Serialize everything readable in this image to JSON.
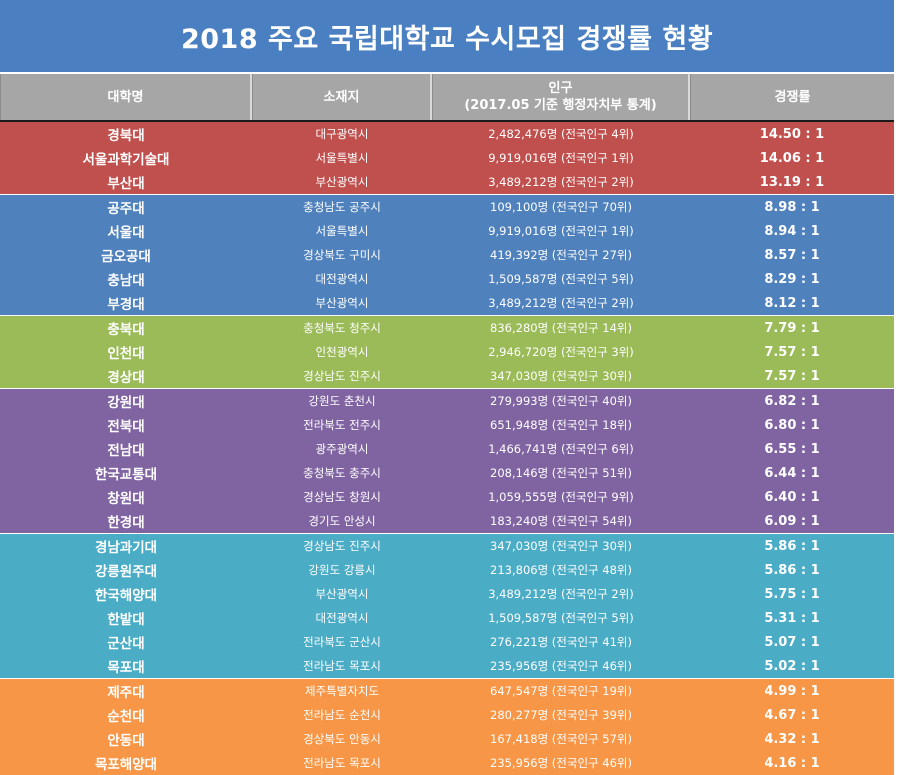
{
  "title": "2018 주요 국립대학교 수시모집 경쟁률 현황",
  "headers": {
    "university": "대학명",
    "location": "소재지",
    "population_line1": "인구",
    "population_line2": "(2017.05 기준 행정자치부 통계)",
    "ratio": "경쟁률"
  },
  "group_colors": {
    "red": "#c0504d",
    "blue": "#4f81bd",
    "green": "#9bbb59",
    "purple": "#8064a2",
    "teal": "#4bacc6",
    "orange": "#f79646"
  },
  "rows": [
    {
      "group": "red",
      "name": "경북대",
      "location": "대구광역시",
      "population": "2,482,476명 (전국인구 4위)",
      "ratio": "14.50 : 1"
    },
    {
      "group": "red",
      "name": "서울과학기술대",
      "location": "서울특별시",
      "population": "9,919,016명 (전국인구 1위)",
      "ratio": "14.06 : 1"
    },
    {
      "group": "red",
      "name": "부산대",
      "location": "부산광역시",
      "population": "3,489,212명 (전국인구 2위)",
      "ratio": "13.19 : 1"
    },
    {
      "group": "blue",
      "name": "공주대",
      "location": "충청남도 공주시",
      "population": "109,100명 (전국인구 70위)",
      "ratio": "8.98 : 1"
    },
    {
      "group": "blue",
      "name": "서울대",
      "location": "서울특별시",
      "population": "9,919,016명 (전국인구 1위)",
      "ratio": "8.94 : 1"
    },
    {
      "group": "blue",
      "name": "금오공대",
      "location": "경상북도 구미시",
      "population": "419,392명 (전국인구 27위)",
      "ratio": "8.57 : 1"
    },
    {
      "group": "blue",
      "name": "충남대",
      "location": "대전광역시",
      "population": "1,509,587명 (전국인구 5위)",
      "ratio": "8.29 : 1"
    },
    {
      "group": "blue",
      "name": "부경대",
      "location": "부산광역시",
      "population": "3,489,212명 (전국인구 2위)",
      "ratio": "8.12 : 1"
    },
    {
      "group": "green",
      "name": "충북대",
      "location": "충청북도 청주시",
      "population": "836,280명 (전국인구 14위)",
      "ratio": "7.79 : 1"
    },
    {
      "group": "green",
      "name": "인천대",
      "location": "인천광역시",
      "population": "2,946,720명 (전국인구 3위)",
      "ratio": "7.57 : 1"
    },
    {
      "group": "green",
      "name": "경상대",
      "location": "경상남도 진주시",
      "population": "347,030명 (전국인구 30위)",
      "ratio": "7.57 : 1"
    },
    {
      "group": "purple",
      "name": "강원대",
      "location": "강원도 춘천시",
      "population": "279,993명 (전국인구 40위)",
      "ratio": "6.82 : 1"
    },
    {
      "group": "purple",
      "name": "전북대",
      "location": "전라북도 전주시",
      "population": "651,948명 (전국인구 18위)",
      "ratio": "6.80 : 1"
    },
    {
      "group": "purple",
      "name": "전남대",
      "location": "광주광역시",
      "population": "1,466,741명 (전국인구 6위)",
      "ratio": "6.55 : 1"
    },
    {
      "group": "purple",
      "name": "한국교통대",
      "location": "충청북도 충주시",
      "population": "208,146명 (전국인구 51위)",
      "ratio": "6.44 : 1"
    },
    {
      "group": "purple",
      "name": "창원대",
      "location": "경상남도 창원시",
      "population": "1,059,555명 (전국인구 9위)",
      "ratio": "6.40 : 1"
    },
    {
      "group": "purple",
      "name": "한경대",
      "location": "경기도 안성시",
      "population": "183,240명 (전국인구 54위)",
      "ratio": "6.09 : 1"
    },
    {
      "group": "teal",
      "name": "경남과기대",
      "location": "경상남도 진주시",
      "population": "347,030명 (전국인구 30위)",
      "ratio": "5.86 : 1"
    },
    {
      "group": "teal",
      "name": "강릉원주대",
      "location": "강원도 강릉시",
      "population": "213,806명 (전국인구 48위)",
      "ratio": "5.86 : 1"
    },
    {
      "group": "teal",
      "name": "한국해양대",
      "location": "부산광역시",
      "population": "3,489,212명 (전국인구 2위)",
      "ratio": "5.75 : 1"
    },
    {
      "group": "teal",
      "name": "한밭대",
      "location": "대전광역시",
      "population": "1,509,587명 (전국인구 5위)",
      "ratio": "5.31 : 1"
    },
    {
      "group": "teal",
      "name": "군산대",
      "location": "전라북도 군산시",
      "population": "276,221명 (전국인구 41위)",
      "ratio": "5.07 : 1"
    },
    {
      "group": "teal",
      "name": "목포대",
      "location": "전라남도 목포시",
      "population": "235,956명 (전국인구 46위)",
      "ratio": "5.02 : 1"
    },
    {
      "group": "orange",
      "name": "제주대",
      "location": "제주특별자치도",
      "population": "647,547명 (전국인구 19위)",
      "ratio": "4.99 : 1"
    },
    {
      "group": "orange",
      "name": "순천대",
      "location": "전라남도 순천시",
      "population": "280,277명 (전국인구 39위)",
      "ratio": "4.67 : 1"
    },
    {
      "group": "orange",
      "name": "안동대",
      "location": "경상북도 안동시",
      "population": "167,418명 (전국인구 57위)",
      "ratio": "4.32 : 1"
    },
    {
      "group": "orange",
      "name": "목포해양대",
      "location": "전라남도 목포시",
      "population": "235,956명 (전국인구 46위)",
      "ratio": "4.16 : 1"
    }
  ]
}
